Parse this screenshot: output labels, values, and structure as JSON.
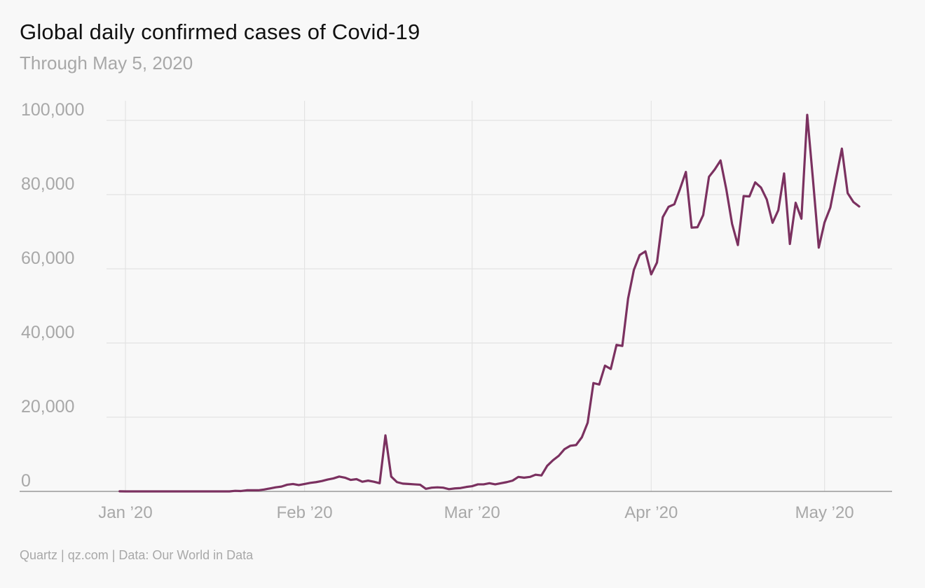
{
  "header": {
    "title": "Global daily confirmed cases of Covid-19",
    "subtitle": "Through May 5, 2020"
  },
  "footer": {
    "source": "Quartz | qz.com | Data: Our World in Data"
  },
  "colors": {
    "line": "#7b3160",
    "grid": "#e3e3e3",
    "axis": "#999999",
    "tick_text": "#a8a8a8",
    "background": "#f8f8f8"
  },
  "chart_data": {
    "type": "line",
    "title": "Global daily confirmed cases of Covid-19",
    "subtitle": "Through May 5, 2020",
    "xlabel": "",
    "ylabel": "",
    "ylim": [
      0,
      100000
    ],
    "xlim": [
      "2019-12-31",
      "2020-05-05"
    ],
    "grid": true,
    "legend": "none",
    "y_ticks": [
      {
        "value": 0,
        "label": "0"
      },
      {
        "value": 20000,
        "label": "20,000"
      },
      {
        "value": 40000,
        "label": "40,000"
      },
      {
        "value": 60000,
        "label": "60,000"
      },
      {
        "value": 80000,
        "label": "80,000"
      },
      {
        "value": 100000,
        "label": "100,000"
      }
    ],
    "x_ticks": [
      {
        "date": "2020-01-01",
        "label": "Jan ’20"
      },
      {
        "date": "2020-02-01",
        "label": "Feb ’20"
      },
      {
        "date": "2020-03-01",
        "label": "Mar ’20"
      },
      {
        "date": "2020-04-01",
        "label": "Apr ’20"
      },
      {
        "date": "2020-05-01",
        "label": "May ’20"
      }
    ],
    "series": [
      {
        "start_date": "2019-12-31",
        "values": [
          27,
          0,
          0,
          0,
          0,
          0,
          0,
          0,
          0,
          0,
          0,
          0,
          0,
          0,
          0,
          0,
          0,
          0,
          0,
          0,
          150,
          100,
          300,
          300,
          300,
          500,
          800,
          1100,
          1300,
          1800,
          2000,
          1700,
          2000,
          2300,
          2500,
          2800,
          3200,
          3500,
          4000,
          3700,
          3100,
          3300,
          2600,
          2900,
          2600,
          2200,
          15100,
          4000,
          2500,
          2100,
          2000,
          1900,
          1800,
          700,
          1000,
          1100,
          1000,
          600,
          800,
          900,
          1200,
          1400,
          1900,
          1900,
          2200,
          1900,
          2200,
          2500,
          2900,
          3900,
          3700,
          3900,
          4500,
          4300,
          6900,
          8400,
          9600,
          11400,
          12300,
          12500,
          14600,
          18500,
          29200,
          28800,
          33900,
          33000,
          39500,
          39200,
          52000,
          59700,
          63700,
          64700,
          58500,
          61700,
          73900,
          76700,
          77400,
          81600,
          86100,
          71100,
          71200,
          74500,
          84800,
          86800,
          89200,
          81400,
          72100,
          66400,
          79600,
          79500,
          83300,
          81900,
          78700,
          72400,
          75800,
          85700,
          66700,
          77800,
          73500,
          101500,
          84000,
          65700,
          72500,
          76500,
          84500,
          92400,
          80400,
          78000,
          76800
        ]
      }
    ]
  }
}
